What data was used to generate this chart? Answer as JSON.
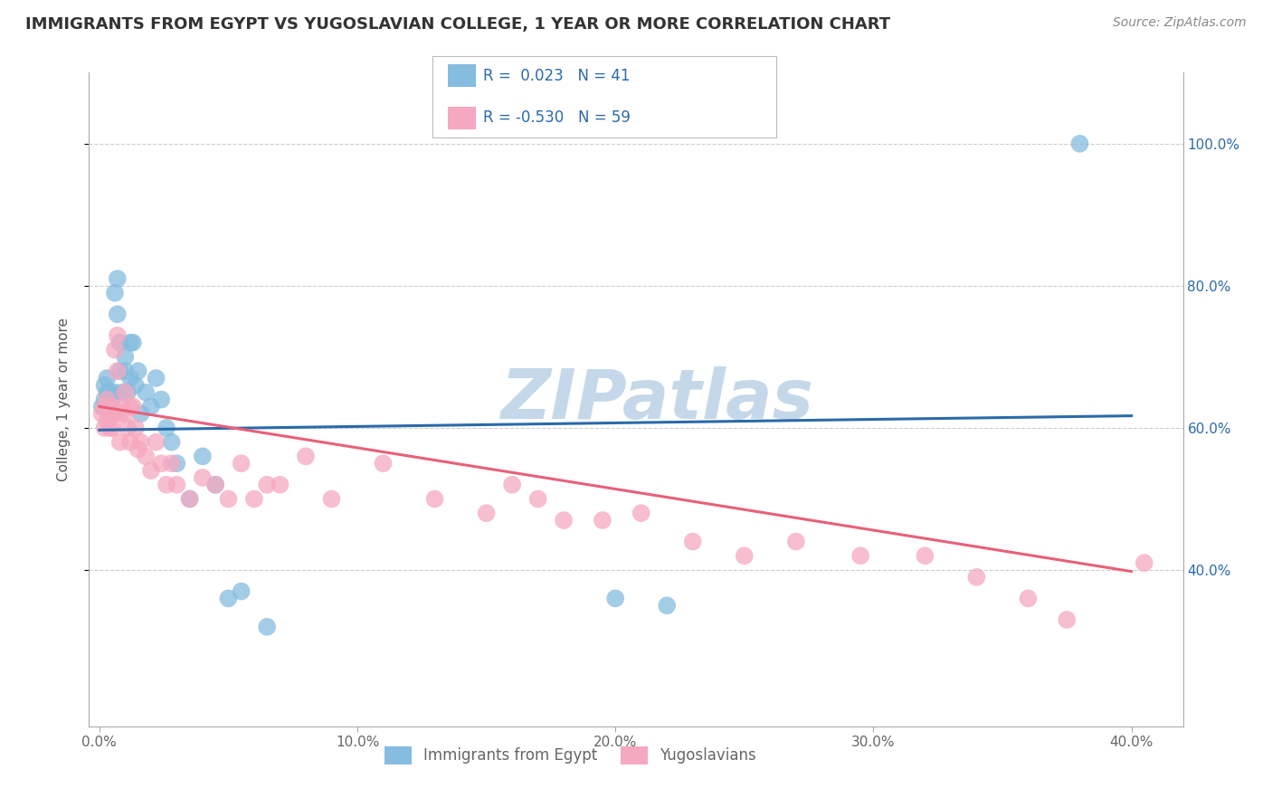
{
  "title": "IMMIGRANTS FROM EGYPT VS YUGOSLAVIAN COLLEGE, 1 YEAR OR MORE CORRELATION CHART",
  "source": "Source: ZipAtlas.com",
  "ylabel": "College, 1 year or more",
  "xlim": [
    -0.004,
    0.42
  ],
  "ylim": [
    0.18,
    1.1
  ],
  "xticks": [
    0.0,
    0.1,
    0.2,
    0.3,
    0.4
  ],
  "xtick_labels": [
    "0.0%",
    "10.0%",
    "20.0%",
    "30.0%",
    "40.0%"
  ],
  "ytick_positions": [
    0.4,
    0.6,
    0.8,
    1.0
  ],
  "ytick_labels": [
    "40.0%",
    "60.0%",
    "80.0%",
    "100.0%"
  ],
  "blue_R": "0.023",
  "blue_N": "41",
  "pink_R": "-0.530",
  "pink_N": "59",
  "blue_color": "#85bce0",
  "pink_color": "#f5a8bf",
  "blue_line_color": "#2a6aaa",
  "pink_line_color": "#e8607a",
  "legend_label_blue": "Immigrants from Egypt",
  "legend_label_pink": "Yugoslavians",
  "watermark": "ZIPatlas",
  "watermark_color": "#c5d8ea",
  "blue_x": [
    0.001,
    0.002,
    0.002,
    0.003,
    0.003,
    0.004,
    0.004,
    0.005,
    0.005,
    0.006,
    0.006,
    0.007,
    0.007,
    0.008,
    0.008,
    0.009,
    0.01,
    0.01,
    0.011,
    0.012,
    0.012,
    0.013,
    0.014,
    0.015,
    0.016,
    0.018,
    0.02,
    0.022,
    0.024,
    0.026,
    0.028,
    0.03,
    0.035,
    0.04,
    0.045,
    0.05,
    0.055,
    0.065,
    0.2,
    0.22,
    0.38
  ],
  "blue_y": [
    0.63,
    0.64,
    0.66,
    0.65,
    0.67,
    0.63,
    0.65,
    0.64,
    0.62,
    0.65,
    0.79,
    0.81,
    0.76,
    0.72,
    0.68,
    0.65,
    0.68,
    0.7,
    0.65,
    0.72,
    0.67,
    0.72,
    0.66,
    0.68,
    0.62,
    0.65,
    0.63,
    0.67,
    0.64,
    0.6,
    0.58,
    0.55,
    0.5,
    0.56,
    0.52,
    0.36,
    0.37,
    0.32,
    0.36,
    0.35,
    1.0
  ],
  "pink_x": [
    0.001,
    0.002,
    0.002,
    0.003,
    0.003,
    0.004,
    0.004,
    0.005,
    0.005,
    0.006,
    0.006,
    0.007,
    0.007,
    0.008,
    0.008,
    0.009,
    0.01,
    0.01,
    0.011,
    0.012,
    0.012,
    0.013,
    0.014,
    0.015,
    0.016,
    0.018,
    0.02,
    0.022,
    0.024,
    0.026,
    0.028,
    0.03,
    0.035,
    0.04,
    0.045,
    0.05,
    0.055,
    0.06,
    0.065,
    0.07,
    0.08,
    0.09,
    0.11,
    0.13,
    0.15,
    0.16,
    0.17,
    0.18,
    0.195,
    0.21,
    0.23,
    0.25,
    0.27,
    0.295,
    0.32,
    0.34,
    0.36,
    0.375,
    0.405
  ],
  "pink_y": [
    0.62,
    0.6,
    0.63,
    0.61,
    0.64,
    0.6,
    0.62,
    0.63,
    0.6,
    0.62,
    0.71,
    0.73,
    0.68,
    0.62,
    0.58,
    0.63,
    0.62,
    0.65,
    0.6,
    0.63,
    0.58,
    0.63,
    0.6,
    0.57,
    0.58,
    0.56,
    0.54,
    0.58,
    0.55,
    0.52,
    0.55,
    0.52,
    0.5,
    0.53,
    0.52,
    0.5,
    0.55,
    0.5,
    0.52,
    0.52,
    0.56,
    0.5,
    0.55,
    0.5,
    0.48,
    0.52,
    0.5,
    0.47,
    0.47,
    0.48,
    0.44,
    0.42,
    0.44,
    0.42,
    0.42,
    0.39,
    0.36,
    0.33,
    0.41
  ],
  "blue_trend_x": [
    0.0,
    0.4
  ],
  "blue_trend_y": [
    0.597,
    0.617
  ],
  "pink_trend_x": [
    0.0,
    0.4
  ],
  "pink_trend_y": [
    0.63,
    0.398
  ],
  "background_color": "#ffffff",
  "grid_color": "#cccccc",
  "title_fontsize": 13,
  "label_fontsize": 11,
  "tick_fontsize": 11,
  "legend_fontsize": 12,
  "source_fontsize": 10
}
